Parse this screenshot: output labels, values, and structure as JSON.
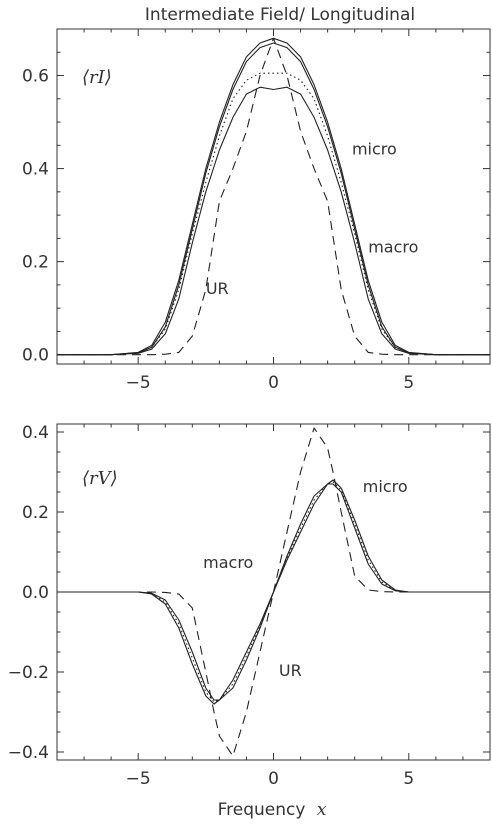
{
  "figure": {
    "title": "Intermediate Field/ Longitudinal",
    "xlabel_text": "Frequency",
    "xlabel_symbol": "x"
  },
  "chart_data": [
    {
      "type": "line",
      "ylabel": "⟨rI⟩",
      "xlim": [
        -8,
        8
      ],
      "ylim": [
        -0.02,
        0.7
      ],
      "xticks": [
        -5,
        0,
        5
      ],
      "xtick_labels": [
        "−5",
        "0",
        "5"
      ],
      "yticks": [
        0.0,
        0.2,
        0.4,
        0.6
      ],
      "ytick_labels": [
        "0.0",
        "0.2",
        "0.4",
        "0.6"
      ],
      "grid": false,
      "annotations": [
        {
          "text": "micro",
          "x": 2.9,
          "y": 0.43
        },
        {
          "text": "macro",
          "x": 3.5,
          "y": 0.22
        },
        {
          "text": "UR",
          "x": -2.5,
          "y": 0.13
        }
      ],
      "x": [
        -8,
        -6,
        -5,
        -4.5,
        -4,
        -3.5,
        -3,
        -2.5,
        -2,
        -1.5,
        -1,
        -0.5,
        0,
        0.5,
        1,
        1.5,
        2,
        2.5,
        3,
        3.5,
        4,
        4.5,
        5,
        6,
        8
      ],
      "series": [
        {
          "style": "solid",
          "values": [
            0,
            0,
            0.003,
            0.012,
            0.045,
            0.12,
            0.24,
            0.35,
            0.44,
            0.51,
            0.56,
            0.575,
            0.57,
            0.575,
            0.56,
            0.51,
            0.44,
            0.35,
            0.24,
            0.12,
            0.045,
            0.012,
            0.003,
            0,
            0
          ]
        },
        {
          "style": "solid",
          "values": [
            0,
            0,
            0.005,
            0.02,
            0.07,
            0.16,
            0.28,
            0.4,
            0.5,
            0.58,
            0.64,
            0.67,
            0.68,
            0.67,
            0.64,
            0.58,
            0.5,
            0.4,
            0.28,
            0.16,
            0.07,
            0.02,
            0.005,
            0,
            0
          ]
        },
        {
          "style": "solid",
          "values": [
            0,
            0,
            0.004,
            0.016,
            0.06,
            0.15,
            0.27,
            0.39,
            0.49,
            0.57,
            0.63,
            0.66,
            0.67,
            0.66,
            0.63,
            0.57,
            0.49,
            0.39,
            0.27,
            0.15,
            0.06,
            0.016,
            0.004,
            0,
            0
          ]
        },
        {
          "style": "dotted",
          "values": [
            0,
            0,
            0.004,
            0.016,
            0.055,
            0.14,
            0.26,
            0.37,
            0.47,
            0.55,
            0.59,
            0.605,
            0.605,
            0.605,
            0.59,
            0.55,
            0.47,
            0.37,
            0.26,
            0.14,
            0.055,
            0.016,
            0.004,
            0,
            0
          ]
        },
        {
          "style": "dashed",
          "values": [
            0,
            0,
            0,
            0,
            0.001,
            0.005,
            0.04,
            0.14,
            0.33,
            0.4,
            0.48,
            0.6,
            0.68,
            0.6,
            0.48,
            0.4,
            0.33,
            0.14,
            0.04,
            0.005,
            0.001,
            0,
            0,
            0,
            0
          ]
        }
      ]
    },
    {
      "type": "line",
      "ylabel": "⟨rV⟩",
      "xlim": [
        -8,
        8
      ],
      "ylim": [
        -0.42,
        0.42
      ],
      "xticks": [
        -5,
        0,
        5
      ],
      "xtick_labels": [
        "−5",
        "0",
        "5"
      ],
      "yticks": [
        -0.4,
        -0.2,
        0.0,
        0.2,
        0.4
      ],
      "ytick_labels": [
        "−0.4",
        "−0.2",
        "0.0",
        "0.2",
        "0.4"
      ],
      "grid": false,
      "annotations": [
        {
          "text": "micro",
          "x": 3.3,
          "y": 0.25
        },
        {
          "text": "macro",
          "x": -2.6,
          "y": 0.06
        },
        {
          "text": "UR",
          "x": 0.2,
          "y": -0.21
        }
      ],
      "x": [
        -8,
        -5,
        -4.5,
        -4,
        -3.5,
        -3,
        -2.5,
        -2.2,
        -2,
        -1.5,
        -1,
        -0.5,
        0,
        0.5,
        1,
        1.5,
        2,
        2.2,
        2.5,
        3,
        3.5,
        4,
        4.5,
        5,
        8
      ],
      "series": [
        {
          "style": "solid",
          "values": [
            0,
            0,
            -0.005,
            -0.03,
            -0.09,
            -0.18,
            -0.26,
            -0.28,
            -0.27,
            -0.22,
            -0.15,
            -0.08,
            0,
            0.08,
            0.15,
            0.22,
            0.27,
            0.28,
            0.26,
            0.18,
            0.09,
            0.03,
            0.005,
            0,
            0
          ]
        },
        {
          "style": "solid",
          "values": [
            0,
            0,
            -0.003,
            -0.02,
            -0.07,
            -0.15,
            -0.24,
            -0.27,
            -0.27,
            -0.24,
            -0.17,
            -0.09,
            0,
            0.09,
            0.17,
            0.24,
            0.27,
            0.27,
            0.25,
            0.16,
            0.07,
            0.02,
            0.003,
            0,
            0
          ]
        },
        {
          "style": "dotted",
          "values": [
            0,
            0,
            -0.004,
            -0.025,
            -0.08,
            -0.165,
            -0.25,
            -0.275,
            -0.27,
            -0.23,
            -0.16,
            -0.085,
            0,
            0.085,
            0.16,
            0.23,
            0.27,
            0.275,
            0.255,
            0.17,
            0.08,
            0.025,
            0.004,
            0,
            0
          ]
        },
        {
          "style": "dashed",
          "values": [
            0,
            0,
            0,
            -0.001,
            -0.005,
            -0.04,
            -0.2,
            -0.3,
            -0.36,
            -0.41,
            -0.3,
            -0.15,
            0,
            0.15,
            0.3,
            0.41,
            0.36,
            0.3,
            0.2,
            0.04,
            0.005,
            0.001,
            0,
            0,
            0
          ]
        }
      ]
    }
  ]
}
